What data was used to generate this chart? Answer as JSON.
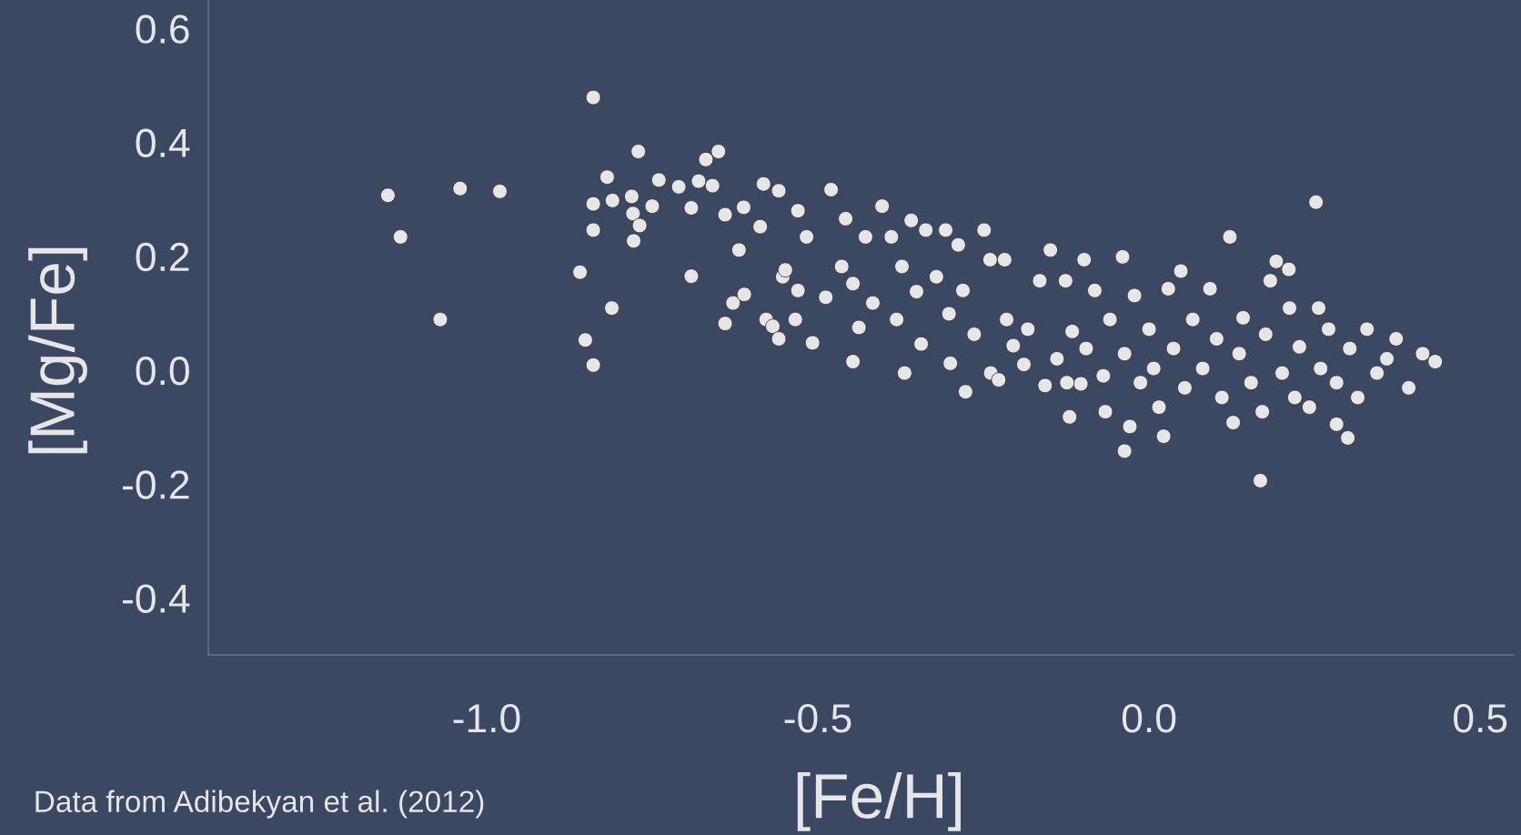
{
  "chart_data": {
    "type": "scatter",
    "xlabel": "[Fe/H]",
    "ylabel": "[Mg/Fe]",
    "annotations": [
      "Data from Adibekyan et al. (2012)"
    ],
    "xlim": [
      -1.42,
      0.55
    ],
    "ylim": [
      -0.5,
      0.65
    ],
    "xticks": [
      {
        "value": -1.0,
        "label": "-1.0"
      },
      {
        "value": -0.5,
        "label": "-0.5"
      },
      {
        "value": 0.0,
        "label": "0.0"
      },
      {
        "value": 0.5,
        "label": "0.5"
      }
    ],
    "yticks": [
      {
        "value": -0.4,
        "label": "-0.4"
      },
      {
        "value": -0.2,
        "label": "-0.2"
      },
      {
        "value": 0.0,
        "label": "0.0"
      },
      {
        "value": 0.2,
        "label": "0.2"
      },
      {
        "value": 0.4,
        "label": "0.4"
      },
      {
        "value": 0.6,
        "label": "0.6"
      }
    ],
    "grid": false,
    "marker": "circle",
    "series": [
      {
        "color": "#e6e6e6",
        "x": [
          -1.149,
          -1.13,
          -1.04,
          -0.98,
          -1.07,
          -0.839,
          -0.859,
          -0.851,
          -0.839,
          -0.811,
          -0.839,
          -0.839,
          -0.818,
          -0.81,
          -0.781,
          -0.779,
          -0.778,
          -0.771,
          -0.769,
          -0.74,
          -0.75,
          -0.71,
          -0.691,
          -0.691,
          -0.669,
          -0.68,
          -0.65,
          -0.659,
          -0.64,
          -0.64,
          -0.628,
          -0.619,
          -0.611,
          -0.612,
          -0.582,
          -0.578,
          -0.568,
          -0.559,
          -0.559,
          -0.553,
          -0.587,
          -0.549,
          -0.534,
          -0.53,
          -0.53,
          -0.517,
          -0.508,
          -0.48,
          -0.488,
          -0.464,
          -0.458,
          -0.447,
          -0.447,
          -0.438,
          -0.417,
          -0.428,
          -0.403,
          -0.389,
          -0.373,
          -0.381,
          -0.369,
          -0.359,
          -0.351,
          -0.344,
          -0.337,
          -0.321,
          -0.307,
          -0.302,
          -0.3,
          -0.288,
          -0.281,
          -0.277,
          -0.264,
          -0.249,
          -0.24,
          -0.239,
          -0.227,
          -0.218,
          -0.215,
          -0.205,
          -0.189,
          -0.183,
          -0.165,
          -0.157,
          -0.149,
          -0.139,
          -0.126,
          -0.12,
          -0.116,
          -0.103,
          -0.098,
          -0.095,
          -0.082,
          -0.069,
          -0.066,
          -0.059,
          -0.04,
          -0.037,
          -0.029,
          -0.037,
          -0.022,
          -0.013,
          0.0,
          0.007,
          0.015,
          0.022,
          0.029,
          0.037,
          0.048,
          0.054,
          0.066,
          0.081,
          0.092,
          0.102,
          0.11,
          0.122,
          0.127,
          0.136,
          0.142,
          0.154,
          0.168,
          0.171,
          0.176,
          0.183,
          0.192,
          0.201,
          0.211,
          0.22,
          0.227,
          0.242,
          0.252,
          0.259,
          0.271,
          0.283,
          0.283,
          0.3,
          0.303,
          0.315,
          0.329,
          0.344,
          0.359,
          0.373,
          0.392,
          0.413,
          0.432,
          0.212,
          0.256,
          -0.124
        ],
        "values": [
          0.307,
          0.234,
          0.319,
          0.314,
          0.089,
          0.479,
          0.172,
          0.053,
          0.009,
          0.109,
          0.292,
          0.246,
          0.339,
          0.298,
          0.305,
          0.275,
          0.227,
          0.384,
          0.254,
          0.334,
          0.288,
          0.322,
          0.165,
          0.285,
          0.37,
          0.332,
          0.384,
          0.324,
          0.273,
          0.082,
          0.118,
          0.211,
          0.133,
          0.286,
          0.327,
          0.089,
          0.077,
          0.055,
          0.315,
          0.164,
          0.252,
          0.176,
          0.089,
          0.28,
          0.14,
          0.234,
          0.048,
          0.317,
          0.128,
          0.182,
          0.266,
          0.152,
          0.015,
          0.075,
          0.118,
          0.234,
          0.288,
          0.234,
          0.182,
          0.089,
          -0.005,
          0.263,
          0.138,
          0.046,
          0.246,
          0.164,
          0.246,
          0.099,
          0.012,
          0.22,
          0.14,
          -0.038,
          0.063,
          0.246,
          0.194,
          -0.005,
          -0.017,
          0.194,
          0.089,
          0.043,
          0.01,
          0.072,
          0.157,
          -0.027,
          0.211,
          0.02,
          0.157,
          -0.082,
          0.068,
          -0.024,
          0.194,
          0.038,
          0.14,
          -0.01,
          -0.073,
          0.089,
          0.199,
          0.029,
          -0.099,
          -0.142,
          0.131,
          -0.022,
          0.072,
          0.003,
          -0.065,
          -0.116,
          0.143,
          0.038,
          0.174,
          -0.031,
          0.089,
          0.003,
          0.143,
          0.055,
          -0.048,
          0.234,
          -0.092,
          0.029,
          0.092,
          -0.022,
          -0.194,
          -0.073,
          0.063,
          0.157,
          0.191,
          -0.005,
          0.177,
          -0.048,
          0.041,
          -0.065,
          0.295,
          0.003,
          0.072,
          -0.022,
          -0.095,
          -0.119,
          0.038,
          -0.048,
          0.072,
          -0.005,
          0.02,
          0.055,
          -0.031,
          0.029,
          0.015,
          0.109,
          0.109,
          -0.022
        ]
      }
    ]
  }
}
